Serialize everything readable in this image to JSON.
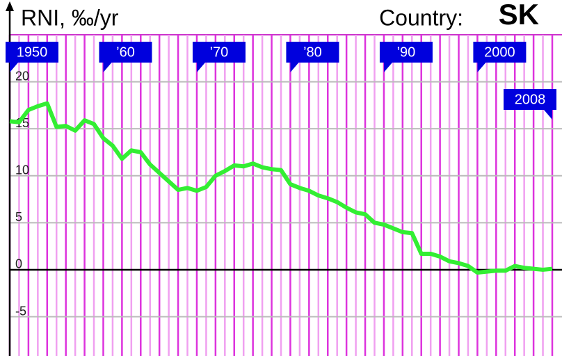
{
  "chart_data": {
    "type": "line",
    "title_label": "Country:",
    "title": "SK",
    "ylabel": "RNI, ‰/yr",
    "x": [
      1950,
      1951,
      1952,
      1953,
      1954,
      1955,
      1956,
      1957,
      1958,
      1959,
      1960,
      1961,
      1962,
      1963,
      1964,
      1965,
      1966,
      1967,
      1968,
      1969,
      1970,
      1971,
      1972,
      1973,
      1974,
      1975,
      1976,
      1977,
      1978,
      1979,
      1980,
      1981,
      1982,
      1983,
      1984,
      1985,
      1986,
      1987,
      1988,
      1989,
      1990,
      1991,
      1992,
      1993,
      1994,
      1995,
      1996,
      1997,
      1998,
      1999,
      2000,
      2001,
      2002,
      2003,
      2004,
      2005,
      2006,
      2007,
      2008
    ],
    "series": [
      {
        "color": "#33ee33",
        "values": [
          15.8,
          15.7,
          17.0,
          17.4,
          17.7,
          15.2,
          15.3,
          14.8,
          15.9,
          15.5,
          14.0,
          13.2,
          11.8,
          12.7,
          12.5,
          11.2,
          10.3,
          9.4,
          8.5,
          8.7,
          8.4,
          8.8,
          10.0,
          10.5,
          11.1,
          11.0,
          11.3,
          10.9,
          10.7,
          10.6,
          9.1,
          8.7,
          8.4,
          7.9,
          7.6,
          7.2,
          6.6,
          6.1,
          5.9,
          5.0,
          4.8,
          4.4,
          4.0,
          3.9,
          1.7,
          1.7,
          1.4,
          0.9,
          0.7,
          0.4,
          -0.3,
          -0.2,
          -0.1,
          -0.1,
          0.4,
          0.2,
          0.1,
          0.0,
          0.1
        ]
      }
    ],
    "xlim": [
      1950,
      2008
    ],
    "xticks": [
      {
        "value": 1950,
        "label": "1950"
      },
      {
        "value": 1960,
        "label": "’60"
      },
      {
        "value": 1970,
        "label": "’70"
      },
      {
        "value": 1980,
        "label": "’80"
      },
      {
        "value": 1990,
        "label": "’90"
      },
      {
        "value": 2000,
        "label": "2000"
      },
      {
        "value": 2008,
        "label": "2008"
      }
    ],
    "ylim": [
      -9,
      25
    ],
    "yticks": [
      -5,
      0,
      5,
      10,
      15,
      20
    ],
    "grid": true
  }
}
